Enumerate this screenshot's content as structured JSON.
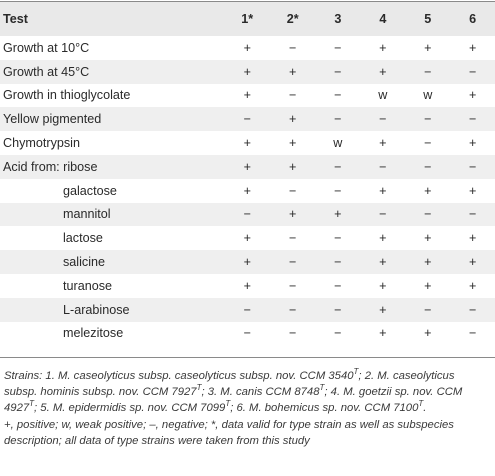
{
  "table": {
    "headers": [
      "Test",
      "1*",
      "2*",
      "3",
      "4",
      "5",
      "6"
    ],
    "rows": [
      {
        "label": "Growth at 10°C",
        "indent": false,
        "values": [
          "+",
          "−",
          "−",
          "+",
          "+",
          "+"
        ]
      },
      {
        "label": "Growth at 45°C",
        "indent": false,
        "values": [
          "+",
          "+",
          "−",
          "+",
          "−",
          "−"
        ]
      },
      {
        "label": "Growth in thioglycolate",
        "indent": false,
        "values": [
          "+",
          "−",
          "−",
          "w",
          "w",
          "+"
        ]
      },
      {
        "label": "Yellow pigmented",
        "indent": false,
        "values": [
          "−",
          "+",
          "−",
          "−",
          "−",
          "−"
        ]
      },
      {
        "label": "Chymotrypsin",
        "indent": false,
        "values": [
          "+",
          "+",
          "w",
          "+",
          "−",
          "+"
        ]
      },
      {
        "label": "Acid from: ribose",
        "indent": false,
        "values": [
          "+",
          "+",
          "−",
          "−",
          "−",
          "−"
        ]
      },
      {
        "label": "galactose",
        "indent": true,
        "values": [
          "+",
          "−",
          "−",
          "+",
          "+",
          "+"
        ]
      },
      {
        "label": "mannitol",
        "indent": true,
        "values": [
          "−",
          "+",
          "+",
          "−",
          "−",
          "−"
        ]
      },
      {
        "label": "lactose",
        "indent": true,
        "values": [
          "+",
          "−",
          "−",
          "+",
          "+",
          "+"
        ]
      },
      {
        "label": "salicine",
        "indent": true,
        "values": [
          "+",
          "−",
          "−",
          "+",
          "+",
          "+"
        ]
      },
      {
        "label": "turanose",
        "indent": true,
        "values": [
          "+",
          "−",
          "−",
          "+",
          "+",
          "+"
        ]
      },
      {
        "label": "L-arabinose",
        "indent": true,
        "values": [
          "−",
          "−",
          "−",
          "+",
          "−",
          "−"
        ]
      },
      {
        "label": "melezitose",
        "indent": true,
        "values": [
          "−",
          "−",
          "−",
          "+",
          "+",
          "−"
        ]
      }
    ]
  },
  "footnote": {
    "strains": [
      {
        "text": "Strains: 1. M. caseolyticus subsp. caseolyticus subsp. nov. CCM 3540",
        "sup": "T"
      },
      {
        "text": "; 2. M. caseolyticus subsp. hominis subsp. nov. CCM 7927",
        "sup": "T"
      },
      {
        "text": "; 3. M. canis CCM 8748",
        "sup": "T"
      },
      {
        "text": "; 4. M. goetzii sp. nov. CCM 4927",
        "sup": "T"
      },
      {
        "text": "; 5. M. epidermidis sp. nov. CCM 7099",
        "sup": "T"
      },
      {
        "text": "; 6. M. bohemicus sp. nov. CCM 7100",
        "sup": "T"
      },
      {
        "text": ".",
        "sup": ""
      }
    ],
    "legend": "+, positive; w, weak positive; –, negative; *, data valid for type strain as well as subspecies description; all data of type strains were taken from this study"
  }
}
